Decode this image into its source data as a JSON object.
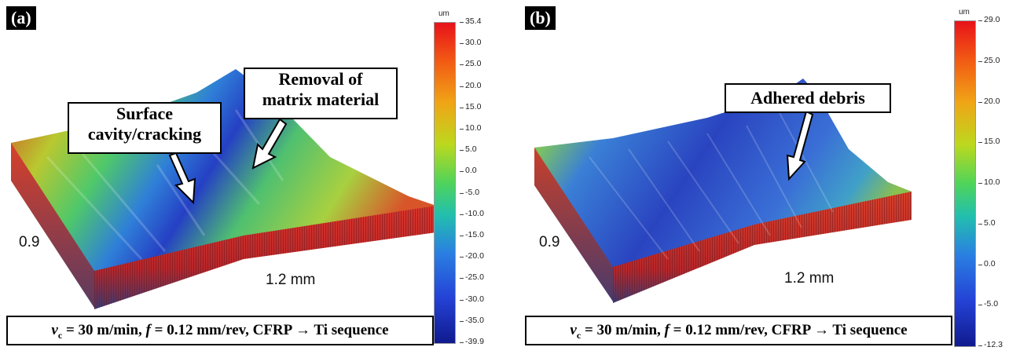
{
  "panel_a": {
    "tag": "(a)",
    "callout_1_line1": "Surface",
    "callout_1_line2": "cavity/cracking",
    "callout_2_line1": "Removal of",
    "callout_2_line2": "matrix material",
    "dim_depth": "0.9",
    "dim_width": "1.2 mm",
    "colorbar": {
      "unit": "um",
      "ticks": [
        "35.4",
        "30.0",
        "25.0",
        "20.0",
        "15.0",
        "10.0",
        "5.0",
        "0.0",
        "-5.0",
        "-10.0",
        "-15.0",
        "-20.0",
        "-25.0",
        "-30.0",
        "-35.0",
        "-39.9"
      ],
      "colors": [
        "#e8121a",
        "#f0a516",
        "#4fd45a",
        "#2a7fe2",
        "#101a8e"
      ]
    },
    "caption_v": "v",
    "caption_sub": "c",
    "caption_mid": " = 30 m/min, ",
    "caption_f": "f",
    "caption_rest": " = 0.12 mm/rev, CFRP → Ti sequence"
  },
  "panel_b": {
    "tag": "(b)",
    "callout_1": "Adhered debris",
    "dim_depth": "0.9",
    "dim_width": "1.2 mm",
    "colorbar": {
      "unit": "um",
      "ticks": [
        "29.0",
        "25.0",
        "20.0",
        "15.0",
        "10.0",
        "5.0",
        "0.0",
        "-5.0",
        "-12.3"
      ],
      "colors": [
        "#e8121a",
        "#f0a516",
        "#4fd45a",
        "#2a7fe2",
        "#101a8e"
      ]
    },
    "caption_v": "v",
    "caption_sub": "c",
    "caption_mid": " = 30 m/min, ",
    "caption_f": "f",
    "caption_rest": " = 0.12 mm/rev, CFRP → Ti sequence"
  }
}
